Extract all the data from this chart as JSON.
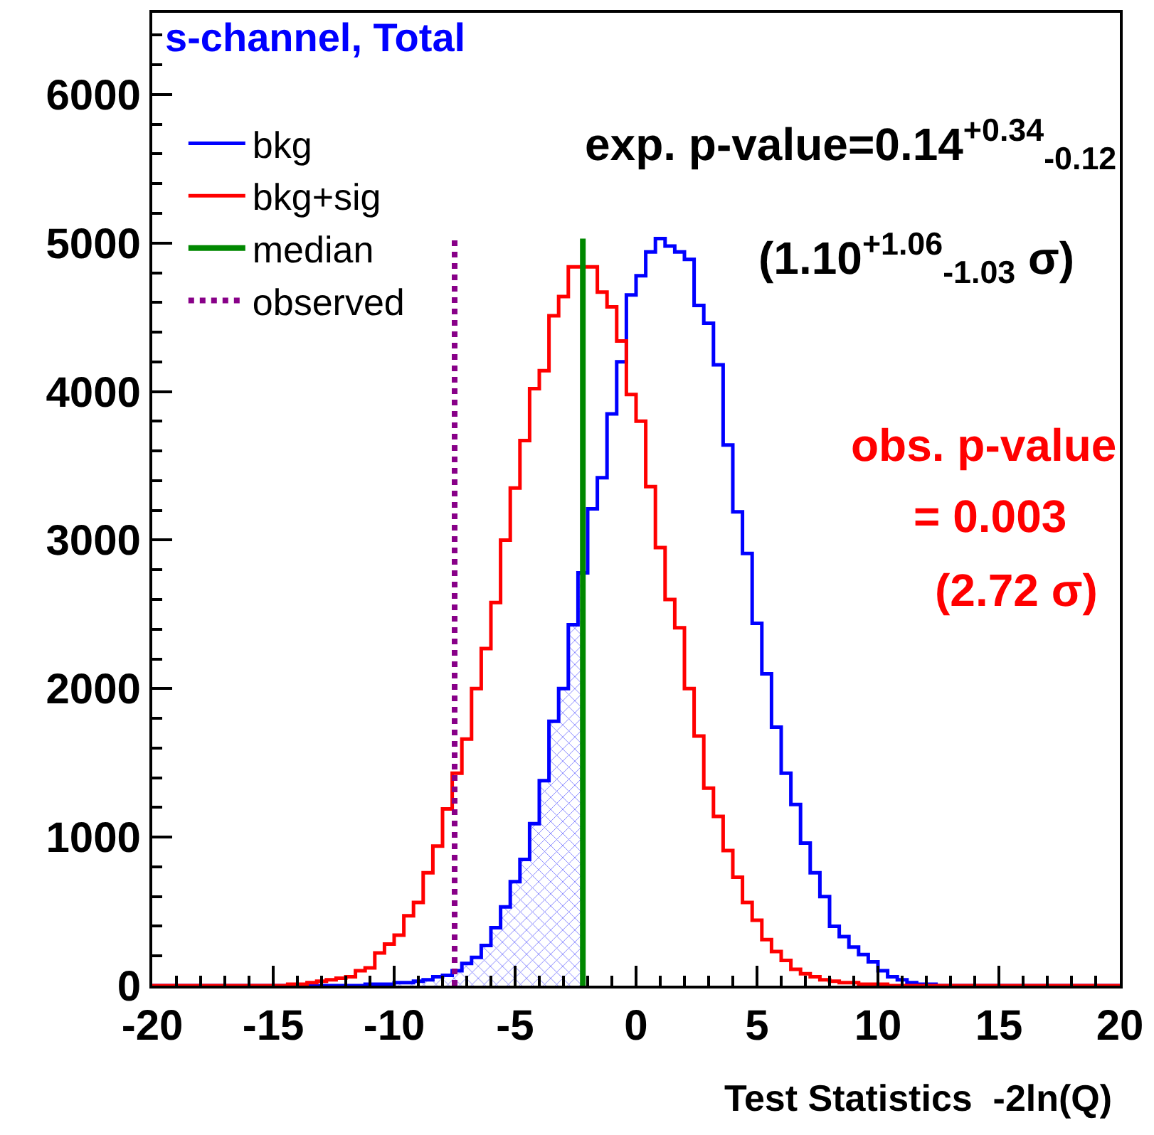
{
  "chart_data": {
    "type": "histogram",
    "title": "s-channel, Total",
    "xlabel": "Test Statistics  -2ln(Q)",
    "annotations": [
      "exp. p-value=0.14$^{+0.34}$$_{-0.12}$",
      "(1.10$^{+1.06}$$_{-1.03}$ σ)",
      "obs. p-value",
      "= 0.003",
      "(2.72 σ)"
    ],
    "bins": [
      -20,
      -19.6,
      -19.2,
      -18.8,
      -18.4,
      -18,
      -17.6,
      -17.2,
      -16.8,
      -16.4,
      -16,
      -15.6,
      -15.2,
      -14.8,
      -14.4,
      -14,
      -13.6,
      -13.2,
      -12.8,
      -12.4,
      -12,
      -11.6,
      -11.2,
      -10.8,
      -10.4,
      -10,
      -9.6,
      -9.2,
      -8.8,
      -8.4,
      -8,
      -7.6,
      -7.2,
      -6.8,
      -6.4,
      -6,
      -5.6,
      -5.2,
      -4.8,
      -4.4,
      -4,
      -3.6,
      -3.2,
      -2.8,
      -2.4,
      -2,
      -1.6,
      -1.2,
      -0.8,
      -0.4,
      0,
      0.4,
      0.8,
      1.2,
      1.6,
      2,
      2.4,
      2.8,
      3.2,
      3.6,
      4,
      4.4,
      4.8,
      5.2,
      5.6,
      6,
      6.4,
      6.8,
      7.2,
      7.6,
      8,
      8.4,
      8.8,
      9.2,
      9.6,
      10,
      10.4,
      10.8,
      11.2,
      11.6,
      12,
      12.4,
      12.8,
      13.2,
      13.6,
      14,
      14.4,
      14.8,
      15.2,
      15.6,
      16,
      16.4,
      16.8,
      17.2,
      17.6,
      18,
      18.4,
      18.8,
      19.2,
      19.6,
      20
    ],
    "series": [
      {
        "name": "bkg",
        "color": "#0000ff",
        "values": [
          0,
          0,
          0,
          0,
          0,
          0,
          0,
          0,
          0,
          0,
          0,
          0,
          0,
          0,
          0,
          0,
          0,
          0,
          0,
          0,
          0,
          0,
          10,
          10,
          10,
          20,
          20,
          30,
          40,
          60,
          70,
          100,
          150,
          190,
          270,
          390,
          530,
          700,
          850,
          1090,
          1380,
          1780,
          2000,
          2430,
          2780,
          3210,
          3420,
          3850,
          4200,
          4650,
          4780,
          4940,
          5030,
          4980,
          4940,
          4890,
          4580,
          4460,
          4180,
          3640,
          3190,
          2910,
          2440,
          2100,
          1740,
          1430,
          1220,
          960,
          760,
          600,
          400,
          330,
          260,
          210,
          160,
          100,
          60,
          40,
          20,
          10,
          10,
          0,
          0,
          0,
          0,
          0,
          0,
          0,
          0,
          0,
          0,
          0,
          0,
          0,
          0,
          0,
          0,
          0,
          0,
          0
        ]
      },
      {
        "name": "bkg+sig",
        "color": "#ff0000",
        "values": [
          0,
          0,
          0,
          0,
          0,
          0,
          0,
          0,
          0,
          0,
          0,
          0,
          0,
          0,
          10,
          10,
          20,
          30,
          40,
          50,
          60,
          100,
          120,
          220,
          280,
          340,
          470,
          560,
          760,
          940,
          1190,
          1430,
          1660,
          2000,
          2270,
          2580,
          3000,
          3350,
          3670,
          4020,
          4140,
          4510,
          4640,
          4840,
          4840,
          4840,
          4670,
          4570,
          4340,
          3980,
          3800,
          3360,
          2950,
          2600,
          2410,
          2000,
          1680,
          1330,
          1140,
          910,
          730,
          560,
          440,
          310,
          230,
          170,
          110,
          80,
          60,
          40,
          30,
          20,
          20,
          10,
          10,
          10,
          0,
          0,
          0,
          0,
          0,
          0,
          0,
          0,
          0,
          0,
          0,
          0,
          0,
          0,
          0,
          0,
          0,
          0,
          0,
          0,
          0,
          0,
          0,
          0
        ]
      },
      {
        "type": "line",
        "name": "median",
        "color": "#008800",
        "line_style": "solid",
        "x": [
          -2.2,
          -2.2
        ],
        "values": [
          0,
          5030
        ]
      },
      {
        "type": "line",
        "name": "observed",
        "color": "#880088",
        "line_style": "dotted",
        "x": [
          -7.5,
          -7.5
        ],
        "values": [
          0,
          5030
        ]
      },
      {
        "type": "area",
        "color": "#0000ff",
        "x": [
          -20,
          -19.6,
          -19.2,
          -18.8,
          -18.4,
          -18,
          -17.6,
          -17.2,
          -16.8,
          -16.4,
          -16,
          -15.6,
          -15.2,
          -14.8,
          -14.4,
          -14,
          -13.6,
          -13.2,
          -12.8,
          -12.4,
          -12,
          -11.6,
          -11.2,
          -10.8,
          -10.4,
          -10,
          -9.6,
          -9.2,
          -8.8,
          -8.4,
          -8,
          -7.6,
          -7.2,
          -6.8,
          -6.4,
          -6,
          -5.6,
          -5.2,
          -4.8,
          -4.4,
          -4,
          -3.6,
          -3.2,
          -2.8,
          -2.4,
          -2.2
        ],
        "values": [
          0,
          0,
          0,
          0,
          0,
          0,
          0,
          0,
          0,
          0,
          0,
          0,
          0,
          0,
          0,
          0,
          0,
          0,
          0,
          0,
          0,
          0,
          10,
          10,
          10,
          20,
          20,
          30,
          40,
          60,
          70,
          100,
          150,
          190,
          270,
          390,
          530,
          700,
          850,
          1090,
          1380,
          1780,
          2000,
          2430,
          2780,
          2780
        ]
      }
    ],
    "xlim": [
      -20,
      20
    ],
    "xticks": [
      -20,
      {
        "value": -19,
        "label": null
      },
      {
        "value": -18,
        "label": null
      },
      {
        "value": -17,
        "label": null
      },
      {
        "value": -16,
        "label": null
      },
      -15,
      {
        "value": -14,
        "label": null
      },
      {
        "value": -13,
        "label": null
      },
      {
        "value": -12,
        "label": null
      },
      {
        "value": -11,
        "label": null
      },
      -10,
      {
        "value": -9,
        "label": null
      },
      {
        "value": -8,
        "label": null
      },
      {
        "value": -7,
        "label": null
      },
      {
        "value": -6,
        "label": null
      },
      -5,
      {
        "value": -4,
        "label": null
      },
      {
        "value": -3,
        "label": null
      },
      {
        "value": -2,
        "label": null
      },
      {
        "value": -1,
        "label": null
      },
      0,
      {
        "value": 1,
        "label": null
      },
      {
        "value": 2,
        "label": null
      },
      {
        "value": 3,
        "label": null
      },
      {
        "value": 4,
        "label": null
      },
      5,
      {
        "value": 6,
        "label": null
      },
      {
        "value": 7,
        "label": null
      },
      {
        "value": 8,
        "label": null
      },
      {
        "value": 9,
        "label": null
      },
      10,
      {
        "value": 11,
        "label": null
      },
      {
        "value": 12,
        "label": null
      },
      {
        "value": 13,
        "label": null
      },
      {
        "value": 14,
        "label": null
      },
      15,
      {
        "value": 16,
        "label": null
      },
      {
        "value": 17,
        "label": null
      },
      {
        "value": 18,
        "label": null
      },
      {
        "value": 19,
        "label": null
      },
      20
    ],
    "ylim": [
      0,
      6550
    ],
    "yticks": [
      0,
      {
        "value": 200,
        "label": null
      },
      {
        "value": 400,
        "label": null
      },
      {
        "value": 600,
        "label": null
      },
      {
        "value": 800,
        "label": null
      },
      1000,
      {
        "value": 1200,
        "label": null
      },
      {
        "value": 1400,
        "label": null
      },
      {
        "value": 1600,
        "label": null
      },
      {
        "value": 1800,
        "label": null
      },
      2000,
      {
        "value": 2200,
        "label": null
      },
      {
        "value": 2400,
        "label": null
      },
      {
        "value": 2600,
        "label": null
      },
      {
        "value": 2800,
        "label": null
      },
      3000,
      {
        "value": 3200,
        "label": null
      },
      {
        "value": 3400,
        "label": null
      },
      {
        "value": 3600,
        "label": null
      },
      {
        "value": 3800,
        "label": null
      },
      4000,
      {
        "value": 4200,
        "label": null
      },
      {
        "value": 4400,
        "label": null
      },
      {
        "value": 4600,
        "label": null
      },
      {
        "value": 4800,
        "label": null
      },
      5000,
      {
        "value": 5200,
        "label": null
      },
      {
        "value": 5400,
        "label": null
      },
      {
        "value": 5600,
        "label": null
      },
      {
        "value": 5800,
        "label": null
      },
      6000,
      {
        "value": 6200,
        "label": null
      },
      {
        "value": 6400,
        "label": null
      }
    ],
    "legend": "top left"
  }
}
